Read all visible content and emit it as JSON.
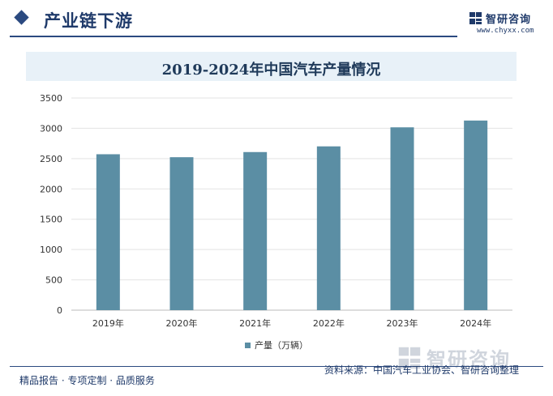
{
  "header": {
    "section_title": "产业链下游",
    "brand_name": "智研咨询",
    "site_url": "www.chyxx.com"
  },
  "chart_data": {
    "type": "bar",
    "title": "2019-2024年中国汽车产量情况",
    "categories": [
      "2019年",
      "2020年",
      "2021年",
      "2022年",
      "2023年",
      "2024年"
    ],
    "series": [
      {
        "name": "产量（万辆）",
        "values": [
          2572,
          2523,
          2608,
          2702,
          3016,
          3128
        ],
        "color": "#5b8ea4"
      }
    ],
    "ylim": [
      0,
      3500
    ],
    "yticks": [
      0,
      500,
      1000,
      1500,
      2000,
      2500,
      3000,
      3500
    ],
    "grid": true,
    "legend": "bottom-center"
  },
  "footer": {
    "services": "精品报告 · 专项定制 · 品质服务",
    "source": "资料来源：中国汽车工业协会、智研咨询整理"
  }
}
